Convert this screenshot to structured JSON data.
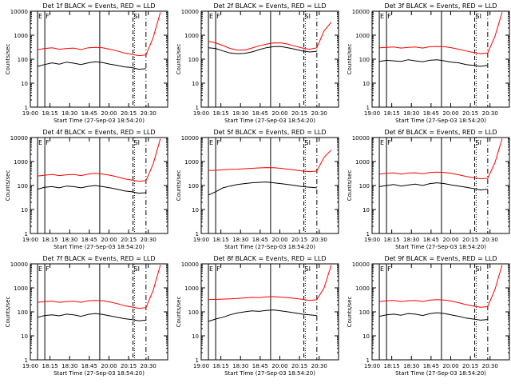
{
  "x_tick_labels": [
    "19:00",
    "18:15",
    "18:30",
    "18:45",
    "20:00",
    "20:15",
    "20:30"
  ],
  "y_tick_labels": [
    "1",
    "10",
    "100",
    "1000",
    "10000"
  ],
  "ylabel": "Counts/sec",
  "xlabel": "Start Time (27-Sep-03 18:54:20)",
  "marker_labels": [
    "E",
    "F",
    "SI"
  ],
  "colors": {
    "events": "#000000",
    "lld": "#ff0000",
    "axes": "#000000"
  },
  "chart_data": [
    {
      "type": "line",
      "title": "Det 1f BLACK = Events, RED = LLD",
      "ylim": [
        1,
        10000
      ],
      "yscale": "log",
      "xlim": [
        0,
        95
      ],
      "x": [
        5,
        10,
        15,
        20,
        25,
        30,
        35,
        40,
        45,
        50,
        55,
        60,
        65,
        70,
        75,
        80,
        85,
        90
      ],
      "series": [
        {
          "name": "Events",
          "values": [
            50,
            60,
            70,
            62,
            75,
            68,
            60,
            70,
            78,
            72,
            62,
            55,
            48,
            45,
            38,
            40,
            null,
            null
          ]
        },
        {
          "name": "LLD",
          "values": [
            250,
            280,
            300,
            260,
            280,
            290,
            250,
            300,
            310,
            300,
            260,
            220,
            180,
            160,
            140,
            150,
            800,
            9000
          ]
        }
      ]
    },
    {
      "type": "line",
      "title": "Det 2f BLACK = Events, RED = LLD",
      "ylim": [
        1,
        10000
      ],
      "yscale": "log",
      "xlim": [
        0,
        95
      ],
      "x": [
        5,
        10,
        15,
        20,
        25,
        30,
        35,
        40,
        45,
        50,
        55,
        60,
        65,
        70,
        75,
        80,
        85,
        90
      ],
      "series": [
        {
          "name": "Events",
          "values": [
            300,
            280,
            220,
            180,
            170,
            175,
            200,
            250,
            300,
            330,
            340,
            300,
            260,
            220,
            200,
            210,
            null,
            null
          ]
        },
        {
          "name": "LLD",
          "values": [
            550,
            480,
            370,
            280,
            240,
            240,
            290,
            360,
            420,
            470,
            480,
            420,
            350,
            290,
            260,
            300,
            1500,
            3500
          ]
        }
      ]
    },
    {
      "type": "line",
      "title": "Det 3f BLACK = Events, RED = LLD",
      "ylim": [
        1,
        10000
      ],
      "yscale": "log",
      "xlim": [
        0,
        95
      ],
      "x": [
        5,
        10,
        15,
        20,
        25,
        30,
        35,
        40,
        45,
        50,
        55,
        60,
        65,
        70,
        75,
        80,
        85,
        90
      ],
      "series": [
        {
          "name": "Events",
          "values": [
            80,
            90,
            85,
            80,
            95,
            85,
            78,
            90,
            95,
            85,
            75,
            70,
            60,
            55,
            50,
            55,
            null,
            null
          ]
        },
        {
          "name": "LLD",
          "values": [
            300,
            310,
            320,
            290,
            310,
            320,
            290,
            330,
            340,
            330,
            300,
            260,
            220,
            190,
            170,
            180,
            900,
            9000
          ]
        }
      ]
    },
    {
      "type": "line",
      "title": "Det 4f BLACK = Events, RED = LLD",
      "ylim": [
        1,
        10000
      ],
      "yscale": "log",
      "xlim": [
        0,
        95
      ],
      "x": [
        5,
        10,
        15,
        20,
        25,
        30,
        35,
        40,
        45,
        50,
        55,
        60,
        65,
        70,
        75,
        80,
        85,
        90
      ],
      "series": [
        {
          "name": "Events",
          "values": [
            70,
            85,
            90,
            80,
            95,
            90,
            80,
            92,
            100,
            90,
            80,
            70,
            60,
            55,
            48,
            50,
            null,
            null
          ]
        },
        {
          "name": "LLD",
          "values": [
            250,
            270,
            290,
            260,
            280,
            290,
            260,
            300,
            320,
            300,
            270,
            230,
            190,
            170,
            150,
            160,
            800,
            9000
          ]
        }
      ]
    },
    {
      "type": "line",
      "title": "Det 5f BLACK = Events, RED = LLD",
      "ylim": [
        1,
        10000
      ],
      "yscale": "log",
      "xlim": [
        0,
        95
      ],
      "x": [
        5,
        10,
        15,
        20,
        25,
        30,
        35,
        40,
        45,
        50,
        55,
        60,
        65,
        70,
        75,
        80,
        85,
        90
      ],
      "series": [
        {
          "name": "Events",
          "values": [
            40,
            55,
            80,
            95,
            110,
            120,
            130,
            135,
            140,
            130,
            120,
            110,
            100,
            90,
            85,
            80,
            null,
            null
          ]
        },
        {
          "name": "LLD",
          "values": [
            420,
            430,
            450,
            470,
            480,
            500,
            520,
            540,
            560,
            550,
            520,
            480,
            440,
            400,
            380,
            400,
            1500,
            3000
          ]
        }
      ]
    },
    {
      "type": "line",
      "title": "Det 6f BLACK = Events, RED = LLD",
      "ylim": [
        1,
        10000
      ],
      "yscale": "log",
      "xlim": [
        0,
        95
      ],
      "x": [
        5,
        10,
        15,
        20,
        25,
        30,
        35,
        40,
        45,
        50,
        55,
        60,
        65,
        70,
        75,
        80,
        85,
        90
      ],
      "series": [
        {
          "name": "Events",
          "values": [
            90,
            100,
            110,
            95,
            105,
            115,
            100,
            120,
            130,
            120,
            105,
            95,
            85,
            75,
            65,
            70,
            null,
            null
          ]
        },
        {
          "name": "LLD",
          "values": [
            300,
            320,
            340,
            300,
            330,
            340,
            310,
            350,
            360,
            350,
            320,
            280,
            240,
            210,
            190,
            200,
            900,
            9000
          ]
        }
      ]
    },
    {
      "type": "line",
      "title": "Det 7f BLACK = Events, RED = LLD",
      "ylim": [
        1,
        10000
      ],
      "yscale": "log",
      "xlim": [
        0,
        95
      ],
      "x": [
        5,
        10,
        15,
        20,
        25,
        30,
        35,
        40,
        45,
        50,
        55,
        60,
        65,
        70,
        75,
        80,
        85,
        90
      ],
      "series": [
        {
          "name": "Events",
          "values": [
            60,
            70,
            75,
            68,
            80,
            75,
            65,
            78,
            85,
            78,
            68,
            60,
            52,
            48,
            42,
            45,
            null,
            null
          ]
        },
        {
          "name": "LLD",
          "values": [
            250,
            270,
            280,
            250,
            270,
            280,
            250,
            290,
            300,
            290,
            260,
            220,
            180,
            160,
            140,
            150,
            800,
            9000
          ]
        }
      ]
    },
    {
      "type": "line",
      "title": "Det 8f BLACK = Events, RED = LLD",
      "ylim": [
        1,
        10000
      ],
      "yscale": "log",
      "xlim": [
        0,
        95
      ],
      "x": [
        5,
        10,
        15,
        20,
        25,
        30,
        35,
        40,
        45,
        50,
        55,
        60,
        65,
        70,
        75,
        80,
        85,
        90
      ],
      "series": [
        {
          "name": "Events",
          "values": [
            40,
            50,
            60,
            75,
            90,
            100,
            110,
            105,
            115,
            120,
            110,
            100,
            90,
            80,
            75,
            70,
            null,
            null
          ]
        },
        {
          "name": "LLD",
          "values": [
            320,
            330,
            340,
            350,
            360,
            380,
            400,
            390,
            420,
            430,
            410,
            390,
            360,
            330,
            300,
            320,
            1000,
            9000
          ]
        }
      ]
    },
    {
      "type": "line",
      "title": "Det 9f BLACK = Events, RED = LLD",
      "ylim": [
        1,
        10000
      ],
      "yscale": "log",
      "xlim": [
        0,
        95
      ],
      "x": [
        5,
        10,
        15,
        20,
        25,
        30,
        35,
        40,
        45,
        50,
        55,
        60,
        65,
        70,
        75,
        80,
        85,
        90
      ],
      "series": [
        {
          "name": "Events",
          "values": [
            65,
            75,
            80,
            72,
            85,
            80,
            70,
            84,
            92,
            85,
            74,
            65,
            55,
            50,
            45,
            48,
            null,
            null
          ]
        },
        {
          "name": "LLD",
          "values": [
            270,
            290,
            300,
            270,
            290,
            300,
            270,
            310,
            320,
            310,
            280,
            240,
            200,
            175,
            155,
            165,
            850,
            9000
          ]
        }
      ]
    }
  ]
}
